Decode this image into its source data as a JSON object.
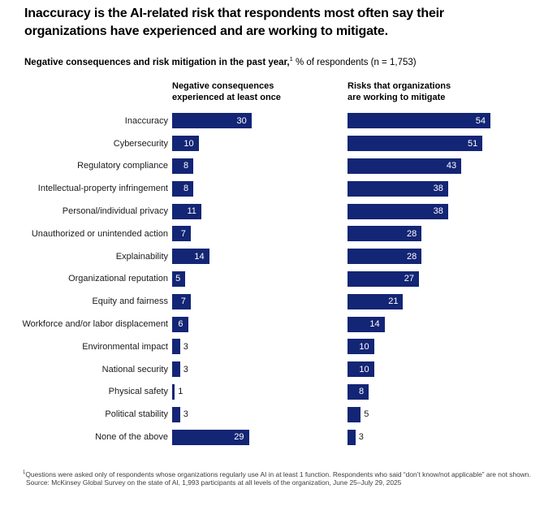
{
  "title": "Inaccuracy is the AI-related risk that respondents most often say their organizations have experienced and are working to mitigate.",
  "subtitle": {
    "bold": "Negative consequences and risk mitigation in the past year,",
    "superscript": "1",
    "regular": " % of respondents (n = 1,753)"
  },
  "chart_data": {
    "type": "bar",
    "orientation": "horizontal",
    "axis_shown": false,
    "grid": false,
    "xlim": [
      0,
      60
    ],
    "bar_color": "#132575",
    "value_label_color_inside": "#ffffff",
    "value_label_color_outside": "#1a1a1a",
    "categories": [
      "Inaccuracy",
      "Cybersecurity",
      "Regulatory compliance",
      "Intellectual-property infringement",
      "Personal/individual privacy",
      "Unauthorized or unintended action",
      "Explainability",
      "Organizational reputation",
      "Equity and fairness",
      "Workforce and/or labor displacement",
      "Environmental impact",
      "National security",
      "Physical safety",
      "Political stability",
      "None of the above"
    ],
    "series": [
      {
        "name": "Negative consequences experienced at least once",
        "values": [
          30,
          10,
          8,
          8,
          11,
          7,
          14,
          5,
          7,
          6,
          3,
          3,
          1,
          3,
          29
        ],
        "value_labels_inside": [
          true,
          true,
          true,
          true,
          true,
          true,
          true,
          true,
          true,
          true,
          false,
          false,
          false,
          false,
          true
        ]
      },
      {
        "name": "Risks that organizations are working to mitigate",
        "values": [
          54,
          51,
          43,
          38,
          38,
          28,
          28,
          27,
          21,
          14,
          10,
          10,
          8,
          5,
          3
        ],
        "value_labels_inside": [
          true,
          true,
          true,
          true,
          true,
          true,
          true,
          true,
          true,
          true,
          true,
          true,
          true,
          false,
          false
        ]
      }
    ]
  },
  "footnotes": {
    "note_superscript": "1",
    "note": "Questions were asked only of respondents whose organizations regularly use AI in at least 1 function. Respondents who said “don’t know/not applicable” are not shown.",
    "source": "Source: McKinsey Global Survey on the state of AI, 1,993 participants at all levels of the organization, June 25–July 29, 2025"
  }
}
